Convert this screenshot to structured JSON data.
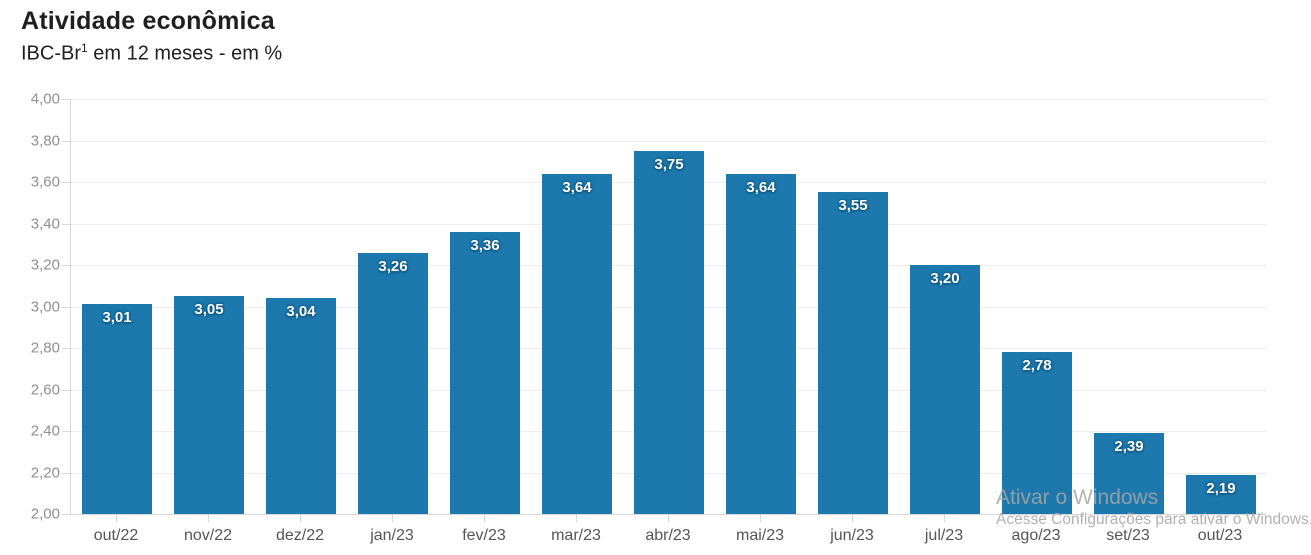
{
  "header": {
    "title": "Atividade econômica",
    "subtitle_prefix": "IBC-Br",
    "subtitle_sup": "1",
    "subtitle_rest": " em 12 meses - em %"
  },
  "chart_data": {
    "type": "bar",
    "title": "Atividade econômica",
    "subtitle": "IBC-Br¹ em 12 meses - em %",
    "categories": [
      "out/22",
      "nov/22",
      "dez/22",
      "jan/23",
      "fev/23",
      "mar/23",
      "abr/23",
      "mai/23",
      "jun/23",
      "jul/23",
      "ago/23",
      "set/23",
      "out/23"
    ],
    "values": [
      3.01,
      3.05,
      3.04,
      3.26,
      3.36,
      3.64,
      3.75,
      3.64,
      3.55,
      3.2,
      2.78,
      2.39,
      2.19
    ],
    "value_labels": [
      "3,01",
      "3,05",
      "3,04",
      "3,26",
      "3,36",
      "3,64",
      "3,75",
      "3,64",
      "3,55",
      "3,20",
      "2,78",
      "2,39",
      "2,19"
    ],
    "ylim": [
      2.0,
      4.0
    ],
    "ytick_step": 0.2,
    "ytick_labels": [
      "4,00",
      "3,80",
      "3,60",
      "3,40",
      "3,20",
      "3,00",
      "2,80",
      "2,60",
      "2,40",
      "2,20",
      "2,00"
    ],
    "grid": "horizontal",
    "legend": "none",
    "bar_color": "#1d78ae",
    "value_label_color": "#ffffff",
    "axis_line_color": "#d6d6d6",
    "gridline_color": "#ececec",
    "ylabel_color": "#909090",
    "xlabel_color": "#555555"
  },
  "watermark": {
    "line1": "Ativar o Windows",
    "line2": "Acesse Configurações para ativar o Windows."
  }
}
